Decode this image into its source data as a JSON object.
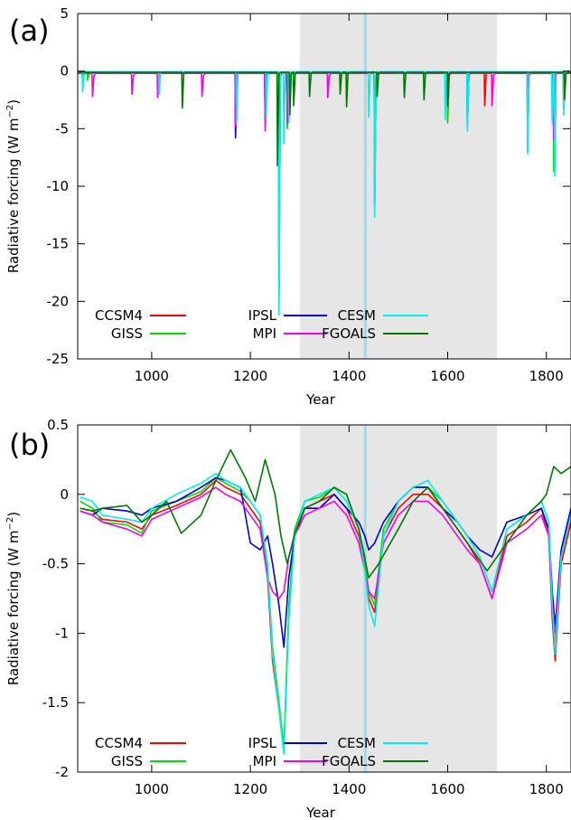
{
  "chart_data": [
    {
      "type": "line",
      "panel_label": "(a)",
      "xlabel": "Year",
      "ylabel": "Radiative forcing (W m",
      "ylabel_sup": "−2",
      "ylabel_close": ")",
      "xlim": [
        850,
        1850
      ],
      "ylim": [
        -25,
        5
      ],
      "xticks": [
        1000,
        1200,
        1400,
        1600,
        1800
      ],
      "yticks": [
        5,
        0,
        -5,
        -10,
        -15,
        -20,
        -25
      ],
      "shaded_regions": [
        {
          "from": 1300,
          "to": 1700,
          "color": "#e6e6e6"
        },
        {
          "from": 1430,
          "to": 1436,
          "color": "#add8e6"
        }
      ],
      "legend_placement": "bottom-left",
      "series": [
        {
          "name": "CCSM4",
          "color": "#ff0000",
          "baseline": -0.15,
          "spikes": [
            [
              860,
              -1.0
            ],
            [
              1170,
              -5.2
            ],
            [
              1230,
              -4.3
            ],
            [
              1258,
              -19.3
            ],
            [
              1275,
              -4.8
            ],
            [
              1452,
              -11.8
            ],
            [
              1600,
              -4.3
            ],
            [
              1640,
              -4.6
            ],
            [
              1675,
              -3.0
            ],
            [
              1762,
              -6.8
            ],
            [
              1812,
              -4.4
            ],
            [
              1817,
              -8.2
            ],
            [
              1835,
              -3.4
            ]
          ]
        },
        {
          "name": "GISS",
          "color": "#00dd00",
          "baseline": -0.1,
          "spikes": [
            [
              870,
              -0.8
            ],
            [
              1170,
              -5.0
            ],
            [
              1230,
              -4.2
            ],
            [
              1258,
              -20.0
            ],
            [
              1275,
              -5.0
            ],
            [
              1452,
              -12.0
            ],
            [
              1600,
              -4.5
            ],
            [
              1640,
              -4.8
            ],
            [
              1762,
              -7.0
            ],
            [
              1815,
              -8.7
            ]
          ]
        },
        {
          "name": "IPSL",
          "color": "#0000cc",
          "baseline": -0.1,
          "spikes": [
            [
              1170,
              -5.8
            ],
            [
              1230,
              -3.0
            ],
            [
              1258,
              -8.0
            ],
            [
              1275,
              -3.5
            ],
            [
              1452,
              -6.0
            ],
            [
              1600,
              -3.0
            ],
            [
              1640,
              -4.0
            ],
            [
              1762,
              -4.0
            ],
            [
              1815,
              -4.5
            ]
          ]
        },
        {
          "name": "MPI",
          "color": "#ee00ee",
          "baseline": -0.2,
          "spikes": [
            [
              880,
              -2.2
            ],
            [
              960,
              -2.0
            ],
            [
              1012,
              -2.3
            ],
            [
              1102,
              -2.2
            ],
            [
              1170,
              -4.8
            ],
            [
              1230,
              -5.2
            ],
            [
              1258,
              -8.0
            ],
            [
              1275,
              -4.5
            ],
            [
              1357,
              -2.3
            ],
            [
              1452,
              -5.8
            ],
            [
              1600,
              -3.0
            ],
            [
              1640,
              -4.8
            ],
            [
              1690,
              -3.0
            ],
            [
              1762,
              -5.0
            ],
            [
              1815,
              -6.0
            ]
          ]
        },
        {
          "name": "CESM",
          "color": "#00eeee",
          "baseline": -0.05,
          "spikes": [
            [
              860,
              -1.8
            ],
            [
              1015,
              -2.0
            ],
            [
              1172,
              -4.5
            ],
            [
              1232,
              -4.0
            ],
            [
              1258,
              -21.2
            ],
            [
              1268,
              -6.3
            ],
            [
              1278,
              -4.5
            ],
            [
              1440,
              -4.0
            ],
            [
              1452,
              -12.7
            ],
            [
              1595,
              -4.2
            ],
            [
              1640,
              -5.2
            ],
            [
              1762,
              -7.2
            ],
            [
              1812,
              -4.6
            ],
            [
              1817,
              -9.1
            ],
            [
              1835,
              -3.8
            ]
          ]
        },
        {
          "name": "FGOALS",
          "color": "#007700",
          "baseline": -0.1,
          "spikes": [
            [
              1062,
              -3.2
            ],
            [
              1255,
              -8.2
            ],
            [
              1280,
              -3.8
            ],
            [
              1288,
              -3.0
            ],
            [
              1320,
              -2.2
            ],
            [
              1382,
              -2.0
            ],
            [
              1395,
              -3.1
            ],
            [
              1457,
              -2.2
            ],
            [
              1512,
              -2.3
            ],
            [
              1552,
              -2.5
            ],
            [
              1600,
              -3.0
            ],
            [
              1837,
              -2.5
            ]
          ]
        }
      ]
    },
    {
      "type": "line",
      "panel_label": "(b)",
      "xlabel": "Year",
      "ylabel": "Radiative forcing (W m",
      "ylabel_sup": "−2",
      "ylabel_close": ")",
      "xlim": [
        850,
        1850
      ],
      "ylim": [
        -2,
        0.5
      ],
      "xticks": [
        1000,
        1200,
        1400,
        1600,
        1800
      ],
      "yticks": [
        0.5,
        0,
        -0.5,
        -1,
        -1.5,
        -2
      ],
      "shaded_regions": [
        {
          "from": 1300,
          "to": 1700,
          "color": "#e6e6e6"
        },
        {
          "from": 1430,
          "to": 1436,
          "color": "#add8e6"
        }
      ],
      "legend_placement": "bottom-left",
      "series": [
        {
          "name": "CCSM4",
          "color": "#ff0000",
          "x": [
            855,
            880,
            900,
            950,
            980,
            1000,
            1050,
            1100,
            1130,
            1150,
            1180,
            1200,
            1220,
            1235,
            1245,
            1258,
            1268,
            1278,
            1290,
            1310,
            1340,
            1370,
            1395,
            1420,
            1432,
            1440,
            1452,
            1470,
            1500,
            1530,
            1560,
            1590,
            1620,
            1640,
            1665,
            1690,
            1720,
            1760,
            1790,
            1805,
            1812,
            1818,
            1830,
            1850
          ],
          "y": [
            -0.1,
            -0.12,
            -0.18,
            -0.2,
            -0.25,
            -0.15,
            -0.08,
            0.0,
            0.1,
            0.05,
            0.0,
            -0.1,
            -0.2,
            -0.6,
            -1.2,
            -1.55,
            -1.85,
            -0.85,
            -0.3,
            -0.1,
            -0.05,
            0.0,
            -0.1,
            -0.3,
            -0.5,
            -0.75,
            -0.85,
            -0.3,
            -0.1,
            0.0,
            0.0,
            -0.1,
            -0.25,
            -0.35,
            -0.5,
            -0.75,
            -0.3,
            -0.2,
            -0.1,
            -0.3,
            -0.9,
            -1.2,
            -0.5,
            -0.2
          ]
        },
        {
          "name": "GISS",
          "color": "#00dd00",
          "x": [
            855,
            880,
            900,
            950,
            980,
            1000,
            1050,
            1100,
            1130,
            1150,
            1180,
            1200,
            1220,
            1235,
            1245,
            1258,
            1268,
            1278,
            1290,
            1310,
            1340,
            1370,
            1395,
            1420,
            1432,
            1440,
            1452,
            1470,
            1500,
            1530,
            1560,
            1590,
            1620,
            1640,
            1665,
            1690,
            1720,
            1760,
            1790,
            1805,
            1812,
            1818,
            1830,
            1850
          ],
          "y": [
            -0.05,
            -0.1,
            -0.2,
            -0.22,
            -0.28,
            -0.12,
            -0.05,
            0.02,
            0.12,
            0.08,
            0.02,
            -0.05,
            -0.15,
            -0.55,
            -1.1,
            -1.5,
            -1.82,
            -0.8,
            -0.25,
            -0.05,
            -0.02,
            0.05,
            -0.05,
            -0.25,
            -0.45,
            -0.7,
            -0.8,
            -0.25,
            -0.05,
            0.05,
            0.05,
            -0.05,
            -0.2,
            -0.3,
            -0.45,
            -0.7,
            -0.25,
            -0.15,
            -0.05,
            -0.2,
            -0.8,
            -1.1,
            -0.45,
            -0.15
          ]
        },
        {
          "name": "IPSL",
          "color": "#0000cc",
          "x": [
            855,
            880,
            900,
            950,
            980,
            1000,
            1050,
            1100,
            1130,
            1150,
            1180,
            1200,
            1220,
            1235,
            1245,
            1258,
            1268,
            1278,
            1290,
            1310,
            1340,
            1370,
            1395,
            1420,
            1432,
            1440,
            1452,
            1470,
            1500,
            1530,
            1560,
            1590,
            1620,
            1640,
            1665,
            1690,
            1720,
            1760,
            1790,
            1805,
            1812,
            1818,
            1830,
            1850
          ],
          "y": [
            -0.12,
            -0.15,
            -0.1,
            -0.12,
            -0.15,
            -0.1,
            -0.05,
            0.05,
            0.12,
            0.1,
            0.05,
            -0.35,
            -0.4,
            -0.3,
            -0.5,
            -0.8,
            -1.1,
            -0.6,
            -0.3,
            -0.1,
            -0.1,
            0.0,
            -0.1,
            -0.2,
            -0.3,
            -0.4,
            -0.35,
            -0.2,
            -0.05,
            0.05,
            0.05,
            -0.1,
            -0.2,
            -0.3,
            -0.4,
            -0.45,
            -0.2,
            -0.15,
            -0.1,
            -0.25,
            -0.7,
            -0.95,
            -0.4,
            -0.1
          ]
        },
        {
          "name": "MPI",
          "color": "#ee00ee",
          "x": [
            855,
            880,
            900,
            950,
            980,
            1000,
            1050,
            1100,
            1130,
            1150,
            1180,
            1200,
            1220,
            1235,
            1245,
            1258,
            1268,
            1278,
            1290,
            1310,
            1340,
            1370,
            1395,
            1420,
            1432,
            1440,
            1452,
            1470,
            1500,
            1530,
            1560,
            1590,
            1620,
            1640,
            1665,
            1690,
            1720,
            1760,
            1790,
            1805,
            1812,
            1818,
            1830,
            1850
          ],
          "y": [
            -0.12,
            -0.15,
            -0.2,
            -0.25,
            -0.3,
            -0.18,
            -0.1,
            -0.02,
            0.05,
            0.0,
            -0.05,
            -0.15,
            -0.25,
            -0.6,
            -0.7,
            -0.75,
            -0.7,
            -0.45,
            -0.3,
            -0.15,
            -0.1,
            -0.05,
            -0.15,
            -0.35,
            -0.55,
            -0.7,
            -0.75,
            -0.35,
            -0.15,
            -0.05,
            -0.05,
            -0.15,
            -0.3,
            -0.4,
            -0.5,
            -0.75,
            -0.35,
            -0.25,
            -0.15,
            -0.3,
            -0.85,
            -1.0,
            -0.45,
            -0.15
          ]
        },
        {
          "name": "CESM",
          "color": "#00eeee",
          "x": [
            855,
            880,
            900,
            950,
            980,
            1000,
            1050,
            1100,
            1130,
            1150,
            1180,
            1200,
            1220,
            1235,
            1245,
            1258,
            1268,
            1278,
            1290,
            1310,
            1340,
            1370,
            1395,
            1420,
            1432,
            1440,
            1452,
            1470,
            1500,
            1530,
            1560,
            1590,
            1620,
            1640,
            1665,
            1690,
            1720,
            1760,
            1790,
            1805,
            1812,
            1818,
            1830,
            1850
          ],
          "y": [
            -0.02,
            -0.05,
            -0.15,
            -0.18,
            -0.2,
            -0.1,
            0.0,
            0.08,
            0.15,
            0.1,
            0.05,
            -0.05,
            -0.15,
            -0.5,
            -1.15,
            -1.55,
            -1.87,
            -0.9,
            -0.3,
            -0.05,
            0.0,
            0.05,
            -0.05,
            -0.25,
            -0.55,
            -0.8,
            -0.95,
            -0.3,
            -0.05,
            0.05,
            0.1,
            -0.05,
            -0.2,
            -0.3,
            -0.45,
            -0.7,
            -0.25,
            -0.15,
            -0.05,
            -0.2,
            -0.8,
            -1.15,
            -0.45,
            -0.15
          ]
        },
        {
          "name": "FGOALS",
          "color": "#007700",
          "x": [
            855,
            880,
            900,
            950,
            980,
            1000,
            1030,
            1060,
            1100,
            1130,
            1160,
            1190,
            1210,
            1230,
            1250,
            1262,
            1275,
            1290,
            1310,
            1340,
            1370,
            1395,
            1420,
            1440,
            1460,
            1500,
            1530,
            1560,
            1590,
            1620,
            1650,
            1680,
            1700,
            1730,
            1760,
            1790,
            1800,
            1815,
            1830,
            1850
          ],
          "y": [
            -0.1,
            -0.12,
            -0.1,
            -0.08,
            -0.2,
            -0.15,
            -0.05,
            -0.28,
            -0.15,
            0.1,
            0.32,
            0.12,
            -0.05,
            0.25,
            0.0,
            -0.3,
            -0.5,
            -0.28,
            -0.1,
            -0.05,
            0.05,
            0.0,
            -0.25,
            -0.6,
            -0.5,
            -0.25,
            -0.05,
            0.05,
            -0.1,
            -0.25,
            -0.4,
            -0.55,
            -0.45,
            -0.3,
            -0.15,
            -0.05,
            0.0,
            0.2,
            0.15,
            0.2
          ]
        }
      ]
    }
  ]
}
